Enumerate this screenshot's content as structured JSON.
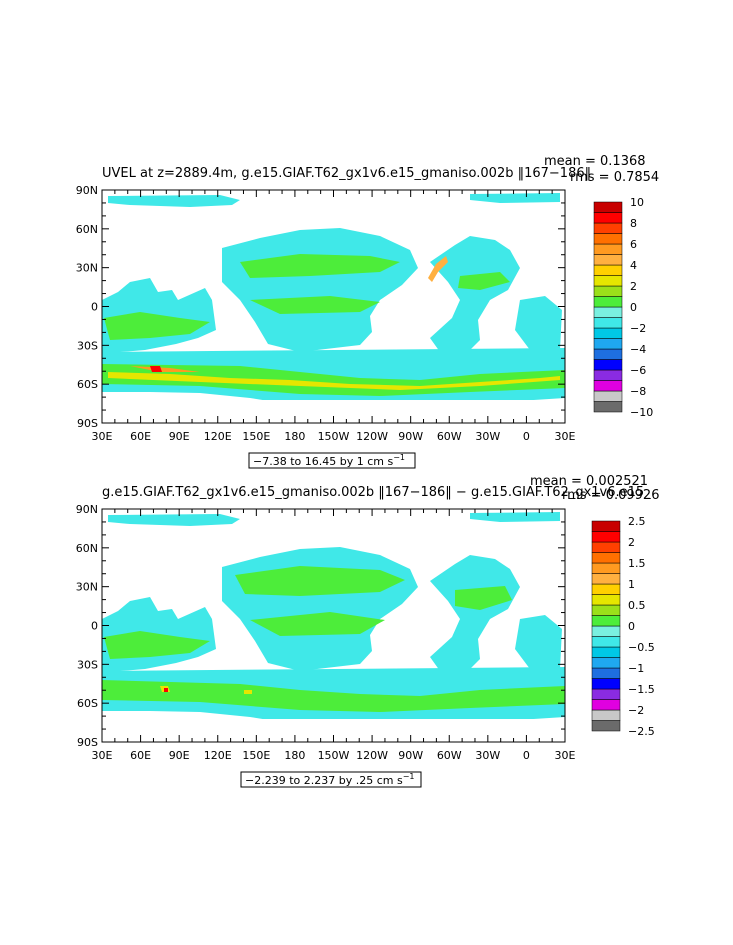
{
  "chart_data": [
    {
      "type": "heatmap",
      "title": "UVEL at z=2889.4m, g.e15.GIAF.T62_gx1v6.e15_gmaniso.002b ‖167−186‖",
      "stats": {
        "mean": "mean = 0.1368",
        "rms": "rms = 0.7854"
      },
      "range_label": "−7.38 to 16.45 by 1 cm s",
      "range_unit_sup": "−1",
      "x_ticks": [
        "30E",
        "60E",
        "90E",
        "120E",
        "150E",
        "180",
        "150W",
        "120W",
        "90W",
        "60W",
        "30W",
        "0",
        "30E"
      ],
      "y_ticks": [
        "90N",
        "60N",
        "30N",
        "0",
        "30S",
        "60S",
        "90S"
      ],
      "colorbar_labels": [
        "10",
        "8",
        "6",
        "4",
        "2",
        "0",
        "−2",
        "−4",
        "−6",
        "−8",
        "−10"
      ],
      "colorbar_levels": [
        -10,
        -9,
        -8,
        -7,
        -6,
        -5,
        -4,
        -3,
        -2,
        -1,
        0,
        1,
        2,
        3,
        4,
        5,
        6,
        7,
        8,
        9,
        10
      ],
      "ylim": [
        -90,
        90
      ],
      "xlim": [
        "30E",
        "30E"
      ]
    },
    {
      "type": "heatmap",
      "title": "g.e15.GIAF.T62_gx1v6.e15_gmaniso.002b ‖167−186‖ − g.e15.GIAF.T62_gx1v6.e15_",
      "stats": {
        "mean": "mean = 0.002521",
        "rms": "rms = 0.09926"
      },
      "range_label": "−2.239 to 2.237 by .25 cm s",
      "range_unit_sup": "−1",
      "x_ticks": [
        "30E",
        "60E",
        "90E",
        "120E",
        "150E",
        "180",
        "150W",
        "120W",
        "90W",
        "60W",
        "30W",
        "0",
        "30E"
      ],
      "y_ticks": [
        "90N",
        "60N",
        "30N",
        "0",
        "30S",
        "60S",
        "90S"
      ],
      "colorbar_labels": [
        "2.5",
        "2",
        "1.5",
        "1",
        "0.5",
        "0",
        "−0.5",
        "−1",
        "−1.5",
        "−2",
        "−2.5"
      ],
      "colorbar_levels": [
        -2.5,
        -2.25,
        -2,
        -1.75,
        -1.5,
        -1.25,
        -1,
        -0.75,
        -0.5,
        -0.25,
        0,
        0.25,
        0.5,
        0.75,
        1,
        1.25,
        1.5,
        1.75,
        2,
        2.25,
        2.5
      ],
      "ylim": [
        -90,
        90
      ],
      "xlim": [
        "30E",
        "30E"
      ]
    }
  ],
  "palette": [
    "#6b6b6b",
    "#c8c8c8",
    "#e000e0",
    "#8a2be2",
    "#0000ff",
    "#1e6fe0",
    "#1fa8f0",
    "#00c8e6",
    "#40e8e8",
    "#7af0e0",
    "#4ded3a",
    "#9be01a",
    "#e6e600",
    "#ffd000",
    "#ffb040",
    "#ff9a20",
    "#ff7000",
    "#ff4000",
    "#ff0000",
    "#c80000"
  ]
}
